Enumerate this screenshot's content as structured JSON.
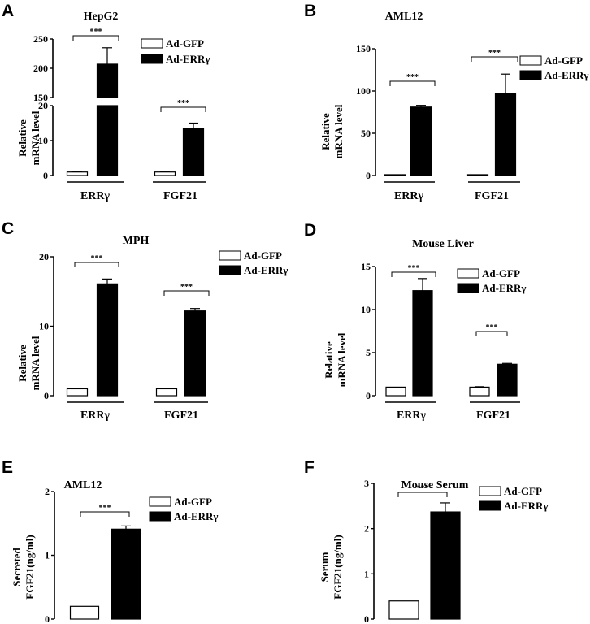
{
  "chart_data": [
    {
      "id": "A",
      "panel": "A",
      "type": "bar",
      "title": "HepG2",
      "ylabel_lines": [
        "Relative",
        "mRNA level"
      ],
      "categories": [
        "ERRγ",
        "FGF21"
      ],
      "series": [
        {
          "name": "Ad-GFP",
          "values": [
            1,
            1
          ],
          "errors": [
            0.2,
            0.2
          ]
        },
        {
          "name": "Ad-ERRγ",
          "values": [
            207,
            13.5
          ],
          "errors": [
            28,
            1.5
          ]
        }
      ],
      "axis_break": true,
      "lower_range": [
        0,
        20
      ],
      "upper_range": [
        150,
        250
      ],
      "yticks_lower": [
        "0",
        "10",
        "20"
      ],
      "yticks_upper": [
        "150",
        "200",
        "250"
      ],
      "significance": [
        "***",
        "***"
      ],
      "legend": "top-right"
    },
    {
      "id": "B",
      "panel": "B",
      "type": "bar",
      "title": "AML12",
      "ylabel_lines": [
        "Relative",
        "mRNA level"
      ],
      "categories": [
        "ERRγ",
        "FGF21"
      ],
      "series": [
        {
          "name": "Ad-GFP",
          "values": [
            1,
            1
          ],
          "errors": [
            0,
            0
          ]
        },
        {
          "name": "Ad-ERRγ",
          "values": [
            81,
            97
          ],
          "errors": [
            2,
            23
          ]
        }
      ],
      "ylim": [
        0,
        150
      ],
      "yticks": [
        "0",
        "50",
        "100",
        "150"
      ],
      "significance": [
        "***",
        "***"
      ],
      "legend": "top-right"
    },
    {
      "id": "C",
      "panel": "C",
      "type": "bar",
      "title": "MPH",
      "ylabel_lines": [
        "Relative",
        "mRNA level"
      ],
      "categories": [
        "ERRγ",
        "FGF21"
      ],
      "series": [
        {
          "name": "Ad-GFP",
          "values": [
            1,
            1
          ],
          "errors": [
            0,
            0.05
          ]
        },
        {
          "name": "Ad-ERRγ",
          "values": [
            16.1,
            12.2
          ],
          "errors": [
            0.7,
            0.35
          ]
        }
      ],
      "ylim": [
        0,
        20
      ],
      "yticks": [
        "0",
        "10",
        "20"
      ],
      "significance": [
        "***",
        "***"
      ],
      "legend": "top-right"
    },
    {
      "id": "D",
      "panel": "D",
      "type": "bar",
      "title": "Mouse Liver",
      "ylabel_lines": [
        "Relative",
        "mRNA level"
      ],
      "categories": [
        "ERRγ",
        "FGF21"
      ],
      "series": [
        {
          "name": "Ad-GFP",
          "values": [
            1,
            1
          ],
          "errors": [
            0,
            0.05
          ]
        },
        {
          "name": "Ad-ERRγ",
          "values": [
            12.2,
            3.65
          ],
          "errors": [
            1.4,
            0.1
          ]
        }
      ],
      "ylim": [
        0,
        15
      ],
      "yticks": [
        "0",
        "5",
        "10",
        "15"
      ],
      "significance": [
        "***",
        "***"
      ],
      "legend": "top-right"
    },
    {
      "id": "E",
      "panel": "E",
      "type": "bar",
      "title": "AML12",
      "ylabel_lines": [
        "Secreted",
        "FGF21(ng/ml)"
      ],
      "categories": [
        ""
      ],
      "series": [
        {
          "name": "Ad-GFP",
          "values": [
            0.2
          ],
          "errors": [
            0
          ]
        },
        {
          "name": "Ad-ERRγ",
          "values": [
            1.41
          ],
          "errors": [
            0.05
          ]
        }
      ],
      "ylim": [
        0,
        2
      ],
      "yticks": [
        "0",
        "1",
        "2"
      ],
      "significance": [
        "***"
      ],
      "legend": "top-right"
    },
    {
      "id": "F",
      "panel": "F",
      "type": "bar",
      "title": "Mouse Serum",
      "ylabel_lines": [
        "Serum",
        "FGF21(ng/ml)"
      ],
      "categories": [
        ""
      ],
      "series": [
        {
          "name": "Ad-GFP",
          "values": [
            0.4
          ],
          "errors": [
            0
          ]
        },
        {
          "name": "Ad-ERRγ",
          "values": [
            2.37
          ],
          "errors": [
            0.2
          ]
        }
      ],
      "ylim": [
        0,
        3
      ],
      "yticks": [
        "0",
        "1",
        "2",
        "3"
      ],
      "significance": [
        "***"
      ],
      "legend": "top-right"
    }
  ]
}
